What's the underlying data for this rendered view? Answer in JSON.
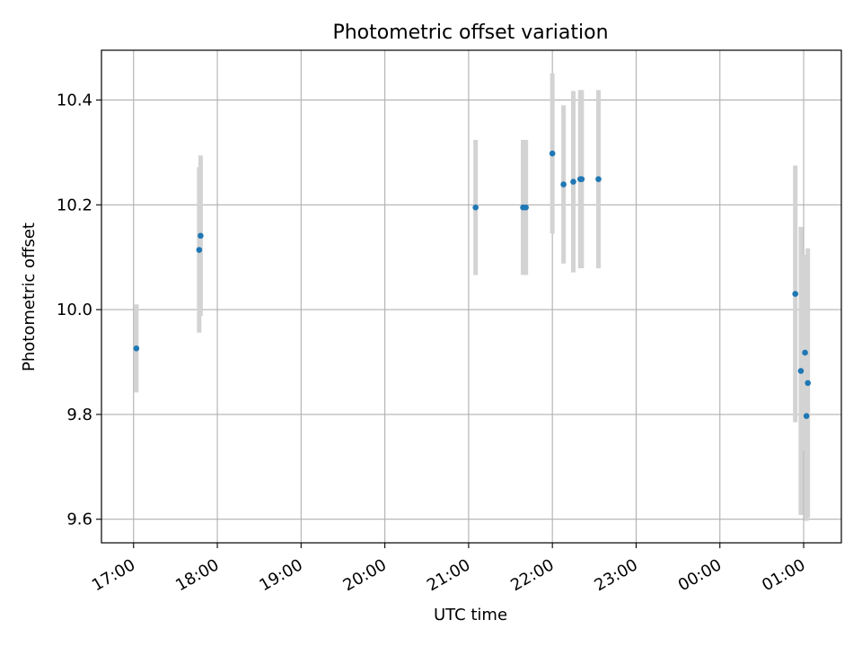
{
  "chart_data": {
    "type": "scatter",
    "title": "Photometric offset variation",
    "xlabel": "UTC time",
    "ylabel": "Photometric offset",
    "x_unit": "UTC time (hours, continuing past midnight)",
    "xlim": [
      "16:37",
      "25:27"
    ],
    "ylim": [
      9.555,
      10.495
    ],
    "grid": true,
    "x_ticks": [
      {
        "value": "17:00",
        "label": "17:00"
      },
      {
        "value": "18:00",
        "label": "18:00"
      },
      {
        "value": "19:00",
        "label": "19:00"
      },
      {
        "value": "20:00",
        "label": "20:00"
      },
      {
        "value": "21:00",
        "label": "21:00"
      },
      {
        "value": "22:00",
        "label": "22:00"
      },
      {
        "value": "23:00",
        "label": "23:00"
      },
      {
        "value": "24:00",
        "label": "00:00"
      },
      {
        "value": "25:00",
        "label": "01:00"
      }
    ],
    "y_ticks": [
      {
        "value": 9.6,
        "label": "9.6"
      },
      {
        "value": 9.8,
        "label": "9.8"
      },
      {
        "value": 10.0,
        "label": "10.0"
      },
      {
        "value": 10.2,
        "label": "10.2"
      },
      {
        "value": 10.4,
        "label": "10.4"
      }
    ],
    "series": [
      {
        "points": [
          {
            "x": "17:02",
            "y": 9.926,
            "yerr": 0.084
          },
          {
            "x": "17:47",
            "y": 10.114,
            "yerr": 0.158
          },
          {
            "x": "17:48",
            "y": 10.141,
            "yerr": 0.153
          },
          {
            "x": "21:05",
            "y": 10.195,
            "yerr": 0.129
          },
          {
            "x": "21:39",
            "y": 10.195,
            "yerr": 0.129
          },
          {
            "x": "21:41",
            "y": 10.195,
            "yerr": 0.129
          },
          {
            "x": "22:00",
            "y": 10.298,
            "yerr": 0.153
          },
          {
            "x": "22:08",
            "y": 10.239,
            "yerr": 0.151
          },
          {
            "x": "22:15",
            "y": 10.244,
            "yerr": 0.173
          },
          {
            "x": "22:20",
            "y": 10.249,
            "yerr": 0.17
          },
          {
            "x": "22:21",
            "y": 10.249,
            "yerr": 0.17
          },
          {
            "x": "22:33",
            "y": 10.249,
            "yerr": 0.17
          },
          {
            "x": "24:54",
            "y": 10.03,
            "yerr": 0.245
          },
          {
            "x": "24:58",
            "y": 9.883,
            "yerr": 0.275
          },
          {
            "x": "25:01",
            "y": 9.918,
            "yerr": 0.187
          },
          {
            "x": "25:02",
            "y": 9.797,
            "yerr": 0.2
          },
          {
            "x": "25:03",
            "y": 9.86,
            "yerr": 0.257
          }
        ],
        "colors": {
          "marker": "#1f77b4",
          "errorbar": "#d3d3d3"
        }
      }
    ]
  }
}
